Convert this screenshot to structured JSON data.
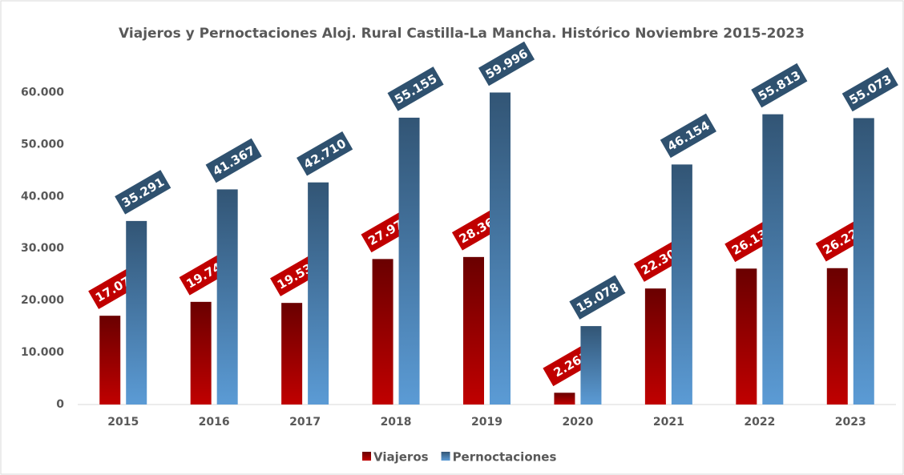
{
  "chart_data": {
    "type": "bar",
    "title": "Viajeros y Pernoctaciones Aloj. Rural Castilla-La Mancha. Histórico Noviembre 2015-2023",
    "categories": [
      "2015",
      "2016",
      "2017",
      "2018",
      "2019",
      "2020",
      "2021",
      "2022",
      "2023"
    ],
    "series": [
      {
        "name": "Viajeros",
        "color": "#c00000",
        "values": [
          17070,
          19740,
          19536,
          27978,
          28366,
          2261,
          22309,
          26137,
          26220
        ],
        "value_labels": [
          "17.070",
          "19.740",
          "19.536",
          "27.978",
          "28.366",
          "2.261",
          "22.309",
          "26.137",
          "26.220"
        ]
      },
      {
        "name": "Pernoctaciones",
        "color": "#5b9bd5",
        "values": [
          35291,
          41367,
          42710,
          55155,
          59996,
          15078,
          46154,
          55813,
          55073
        ],
        "value_labels": [
          "35.291",
          "41.367",
          "42.710",
          "55.155",
          "59.996",
          "15.078",
          "46.154",
          "55.813",
          "55.073"
        ]
      }
    ],
    "ylim": [
      0,
      65000
    ],
    "yticks": [
      0,
      {
        "value": 10000,
        "label": "10.000"
      },
      {
        "value": 20000,
        "label": "20.000"
      },
      {
        "value": 30000,
        "label": "30.000"
      },
      {
        "value": 40000,
        "label": "40.000"
      },
      {
        "value": 50000,
        "label": "50.000"
      },
      {
        "value": 60000,
        "label": "60.000"
      }
    ],
    "legend": "bottom"
  }
}
